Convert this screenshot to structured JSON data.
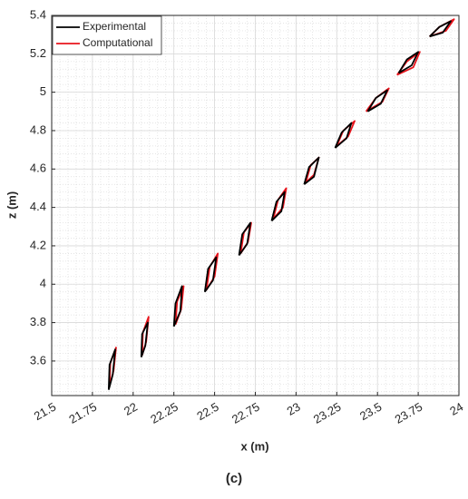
{
  "chart_data": {
    "type": "line",
    "x_label": "x (m)",
    "y_label": "z (m)",
    "caption": "(c)",
    "xlim": [
      21.5,
      24
    ],
    "ylim": [
      3.42,
      5.4
    ],
    "xticks": [
      21.5,
      21.75,
      22,
      22.25,
      22.5,
      22.75,
      23,
      23.25,
      23.5,
      23.75,
      24
    ],
    "yticks": [
      3.6,
      3.8,
      4,
      4.2,
      4.4,
      4.6,
      4.8,
      5,
      5.2,
      5.4
    ],
    "grid": true,
    "minor_grid": true,
    "legend_position": "upper-left",
    "series": [
      {
        "name": "Experimental",
        "color": "#000000",
        "x": [
          21.85,
          21.855,
          21.89,
          21.875,
          21.85,
          null,
          22.05,
          22.055,
          22.09,
          22.075,
          22.05,
          null,
          22.25,
          22.26,
          22.3,
          22.29,
          22.25,
          null,
          22.44,
          22.46,
          22.51,
          22.49,
          22.44,
          null,
          22.65,
          22.67,
          22.72,
          22.7,
          22.65,
          null,
          22.85,
          22.88,
          22.93,
          22.91,
          22.85,
          null,
          23.05,
          23.08,
          23.14,
          23.11,
          23.05,
          null,
          23.24,
          23.28,
          23.34,
          23.31,
          23.24,
          null,
          23.44,
          23.49,
          23.56,
          23.52,
          23.44,
          null,
          23.63,
          23.68,
          23.75,
          23.71,
          23.63,
          null,
          23.82,
          23.88,
          23.95,
          23.9,
          23.82
        ],
        "values": [
          3.45,
          3.58,
          3.66,
          3.53,
          3.45,
          null,
          3.62,
          3.74,
          3.8,
          3.68,
          3.62,
          null,
          3.78,
          3.9,
          3.99,
          3.86,
          3.78,
          null,
          3.96,
          4.08,
          4.14,
          4.02,
          3.96,
          null,
          4.15,
          4.26,
          4.32,
          4.21,
          4.15,
          null,
          4.33,
          4.43,
          4.48,
          4.38,
          4.33,
          null,
          4.52,
          4.61,
          4.66,
          4.56,
          4.52,
          null,
          4.71,
          4.79,
          4.84,
          4.76,
          4.71,
          null,
          4.9,
          4.97,
          5.01,
          4.94,
          4.9,
          null,
          5.1,
          5.17,
          5.21,
          5.14,
          5.1,
          null,
          5.29,
          5.34,
          5.37,
          5.31,
          5.29
        ]
      },
      {
        "name": "Computational",
        "color": "#e8141c",
        "x": [
          21.855,
          21.86,
          21.895,
          21.88,
          21.855,
          null,
          22.055,
          22.06,
          22.095,
          22.08,
          22.055,
          null,
          22.26,
          22.27,
          22.31,
          22.295,
          22.26,
          null,
          22.45,
          22.47,
          22.52,
          22.5,
          22.45,
          null,
          22.66,
          22.68,
          22.725,
          22.705,
          22.66,
          null,
          22.86,
          22.89,
          22.94,
          22.92,
          22.86,
          null,
          23.06,
          23.09,
          23.14,
          23.11,
          23.06,
          null,
          23.25,
          23.29,
          23.36,
          23.32,
          23.25,
          null,
          23.43,
          23.49,
          23.57,
          23.53,
          23.43,
          null,
          23.62,
          23.68,
          23.76,
          23.72,
          23.62,
          null,
          23.82,
          23.88,
          23.97,
          23.92,
          23.82
        ],
        "values": [
          3.47,
          3.59,
          3.67,
          3.55,
          3.47,
          null,
          3.63,
          3.75,
          3.83,
          3.7,
          3.63,
          null,
          3.79,
          3.91,
          3.99,
          3.87,
          3.79,
          null,
          3.97,
          4.09,
          4.16,
          4.04,
          3.97,
          null,
          4.16,
          4.27,
          4.32,
          4.22,
          4.16,
          null,
          4.34,
          4.44,
          4.5,
          4.4,
          4.34,
          null,
          4.53,
          4.62,
          4.66,
          4.57,
          4.53,
          null,
          4.72,
          4.8,
          4.85,
          4.77,
          4.72,
          null,
          4.9,
          4.97,
          5.02,
          4.95,
          4.9,
          null,
          5.09,
          5.16,
          5.21,
          5.13,
          5.09,
          null,
          5.29,
          5.34,
          5.38,
          5.32,
          5.29
        ]
      }
    ]
  }
}
